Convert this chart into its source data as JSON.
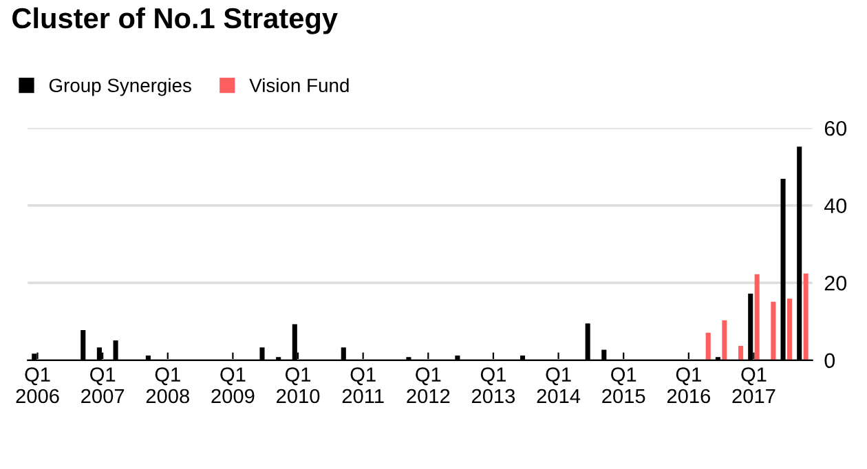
{
  "chart_data": {
    "type": "bar",
    "title": "Cluster of No.1 Strategy",
    "categories": [
      "Q1\n2006",
      null,
      null,
      null,
      "Q1\n2007",
      null,
      null,
      null,
      "Q1\n2008",
      null,
      null,
      null,
      "Q1\n2009",
      null,
      null,
      null,
      "Q1\n2010",
      null,
      null,
      null,
      "Q1\n2011",
      null,
      null,
      null,
      "Q1\n2012",
      null,
      null,
      null,
      "Q1\n2013",
      null,
      null,
      null,
      "Q1\n2014",
      null,
      null,
      null,
      "Q1\n2015",
      null,
      null,
      null,
      "Q1\n2016",
      null,
      null,
      null,
      "Q1\n2017",
      null,
      null,
      null
    ],
    "series": [
      {
        "name": "Group Synergies",
        "color": "#000000",
        "values": [
          1.7,
          0,
          0,
          7.8,
          3.3,
          5.1,
          0,
          1.2,
          0,
          0,
          0,
          0,
          0,
          0,
          3.3,
          0.8,
          9.3,
          0,
          0,
          3.3,
          0,
          0,
          0,
          0.8,
          0,
          0,
          1.2,
          0,
          0,
          0,
          1.2,
          0,
          0,
          0,
          9.5,
          2.7,
          0,
          0,
          0,
          0,
          0,
          0,
          0.8,
          0,
          17.2,
          0,
          46.9,
          55.2
        ]
      },
      {
        "name": "Vision Fund",
        "color": "#ff5f5f",
        "values": [
          0,
          0,
          0,
          0,
          0,
          0,
          0,
          0,
          0,
          0,
          0,
          0,
          0,
          0,
          0,
          0,
          0,
          0,
          0,
          0,
          0,
          0,
          0,
          0,
          0,
          0,
          0,
          0,
          0,
          0,
          0,
          0,
          0,
          0,
          0,
          0,
          0,
          0,
          0,
          0,
          0,
          7.1,
          10.3,
          3.7,
          22.2,
          15.1,
          15.9,
          22.4
        ]
      }
    ],
    "ylim": [
      0,
      60
    ],
    "yticks": [
      0,
      20,
      40,
      60
    ],
    "grid": "y",
    "legend": "top left"
  }
}
